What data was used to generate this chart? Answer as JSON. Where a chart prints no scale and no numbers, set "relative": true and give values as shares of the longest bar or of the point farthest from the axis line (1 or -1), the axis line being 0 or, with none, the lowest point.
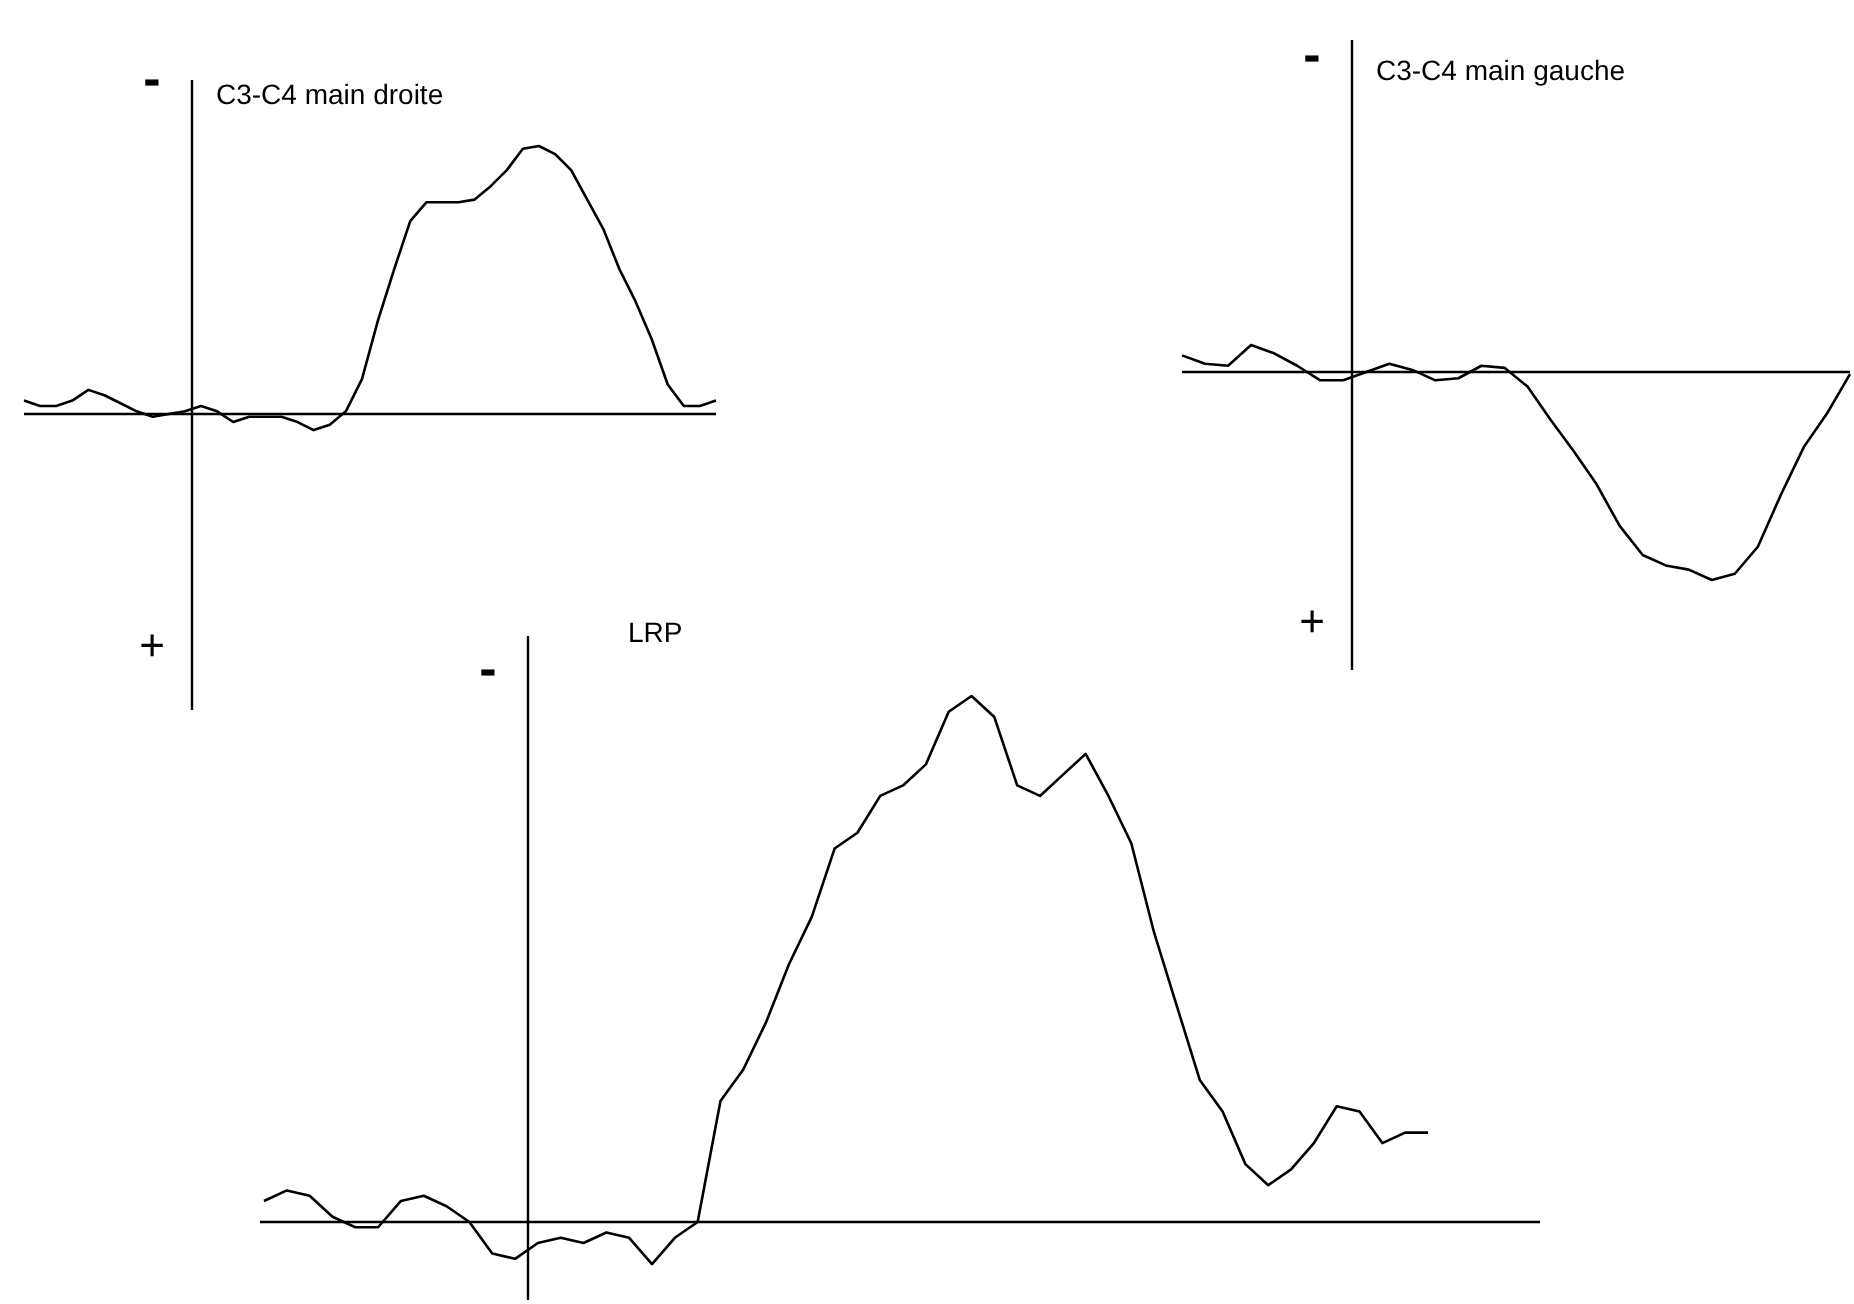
{
  "chart_data": [
    {
      "type": "line",
      "title": "C3-C4 main droite",
      "relative": true,
      "annotations": [
        "-",
        "+"
      ],
      "categories": [
        null,
        null,
        null,
        null,
        null,
        null,
        null,
        null,
        null,
        null,
        null,
        null,
        null,
        null,
        null,
        null,
        null,
        null,
        null,
        null,
        null,
        null,
        null,
        null,
        null,
        null,
        null,
        null,
        null,
        null,
        null,
        null,
        null,
        null,
        null,
        null,
        null,
        null,
        null,
        null,
        null,
        null,
        null,
        null
      ],
      "series": [
        {
          "color": "#000000",
          "values": [
            0.05,
            0.03,
            0.03,
            0.05,
            0.09,
            0.07,
            0.04,
            0.01,
            -0.01,
            0,
            0.01,
            0.03,
            0.01,
            -0.03,
            -0.01,
            -0.01,
            -0.01,
            -0.03,
            -0.06,
            -0.04,
            0.01,
            0.13,
            0.35,
            0.54,
            0.72,
            0.79,
            0.79,
            0.79,
            0.8,
            0.85,
            0.91,
            0.99,
            1,
            0.97,
            0.91,
            0.8,
            0.69,
            0.54,
            0.42,
            0.28,
            0.11,
            0.03,
            0.03,
            0.05
          ]
        }
      ]
    },
    {
      "type": "line",
      "title": "C3-C4 main gauche",
      "relative": true,
      "annotations": [
        "-",
        "+"
      ],
      "categories": [
        null,
        null,
        null,
        null,
        null,
        null,
        null,
        null,
        null,
        null,
        null,
        null,
        null,
        null,
        null,
        null,
        null,
        null,
        null,
        null,
        null,
        null,
        null,
        null,
        null,
        null,
        null,
        null,
        null,
        null
      ],
      "series": [
        {
          "color": "#000000",
          "values": [
            0.08,
            0.04,
            0.03,
            0.13,
            0.09,
            0.03,
            -0.04,
            -0.04,
            0,
            0.04,
            0.01,
            -0.04,
            -0.03,
            0.03,
            0.02,
            -0.07,
            -0.23,
            -0.38,
            -0.54,
            -0.74,
            -0.88,
            -0.93,
            -0.95,
            -1,
            -0.97,
            -0.84,
            -0.59,
            -0.36,
            -0.2,
            -0.01
          ]
        }
      ]
    },
    {
      "type": "line",
      "title": "LRP",
      "relative": true,
      "annotations": [
        "-"
      ],
      "categories": [
        null,
        null,
        null,
        null,
        null,
        null,
        null,
        null,
        null,
        null,
        null,
        null,
        null,
        null,
        null,
        null,
        null,
        null,
        null,
        null,
        null,
        null,
        null,
        null,
        null,
        null,
        null,
        null,
        null,
        null,
        null,
        null,
        null,
        null,
        null,
        null,
        null,
        null,
        null,
        null,
        null,
        null,
        null,
        null,
        null,
        null,
        null,
        null,
        null,
        null,
        null,
        null
      ],
      "series": [
        {
          "color": "#000000",
          "values": [
            0.04,
            0.06,
            0.05,
            0.01,
            -0.01,
            -0.01,
            0.04,
            0.05,
            0.03,
            0,
            -0.06,
            -0.07,
            -0.04,
            -0.03,
            -0.04,
            -0.02,
            -0.03,
            -0.08,
            -0.03,
            0,
            0.23,
            0.29,
            0.38,
            0.49,
            0.58,
            0.71,
            0.74,
            0.81,
            0.83,
            0.87,
            0.97,
            1,
            0.96,
            0.83,
            0.81,
            0.85,
            0.89,
            0.81,
            0.72,
            0.55,
            0.41,
            0.27,
            0.21,
            0.11,
            0.07,
            0.1,
            0.15,
            0.22,
            0.21,
            0.15,
            0.17,
            0.17
          ]
        }
      ]
    }
  ]
}
